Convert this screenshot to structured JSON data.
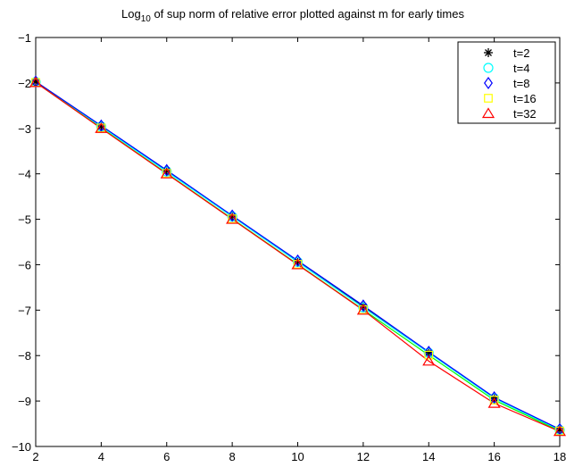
{
  "chart_data": {
    "type": "line",
    "title": {
      "prefix": "Log",
      "subscript": "10",
      "rest": " of sup norm of relative error plotted against  m  for early times"
    },
    "xlabel": "",
    "ylabel": "",
    "xlim": [
      2,
      18
    ],
    "ylim": [
      -10,
      -1
    ],
    "xticks": [
      2,
      4,
      6,
      8,
      10,
      12,
      14,
      16,
      18
    ],
    "yticks": [
      -10,
      -9,
      -8,
      -7,
      -6,
      -5,
      -4,
      -3,
      -2,
      -1
    ],
    "grid": false,
    "legend_position": "top-right",
    "x": [
      2,
      4,
      6,
      8,
      10,
      12,
      14,
      16,
      18
    ],
    "series": [
      {
        "name": "t=2",
        "marker": "asterisk",
        "color": "#000000",
        "line_color": "#000000",
        "values": [
          -1.97,
          -2.95,
          -3.93,
          -4.93,
          -5.93,
          -6.92,
          -7.93,
          -8.93,
          -9.63
        ]
      },
      {
        "name": "t=4",
        "marker": "circle",
        "color": "#00ffff",
        "line_color": "#00ffff",
        "values": [
          -1.98,
          -2.96,
          -3.95,
          -4.94,
          -5.94,
          -6.94,
          -7.94,
          -8.94,
          -9.64
        ]
      },
      {
        "name": "t=8",
        "marker": "diamond",
        "color": "#0000ff",
        "line_color": "#0000ff",
        "values": [
          -1.97,
          -2.94,
          -3.92,
          -4.92,
          -5.91,
          -6.9,
          -7.92,
          -8.92,
          -9.62
        ]
      },
      {
        "name": "t=16",
        "marker": "square",
        "color": "#ffff00",
        "line_color": "#00ff00",
        "values": [
          -1.99,
          -2.99,
          -3.99,
          -4.99,
          -5.99,
          -6.99,
          -7.99,
          -8.98,
          -9.66
        ]
      },
      {
        "name": "t=32",
        "marker": "triangle",
        "color": "#ff0000",
        "line_color": "#ff0000",
        "values": [
          -1.99,
          -3.0,
          -4.0,
          -5.0,
          -6.0,
          -7.0,
          -8.12,
          -9.05,
          -9.67
        ]
      }
    ]
  }
}
